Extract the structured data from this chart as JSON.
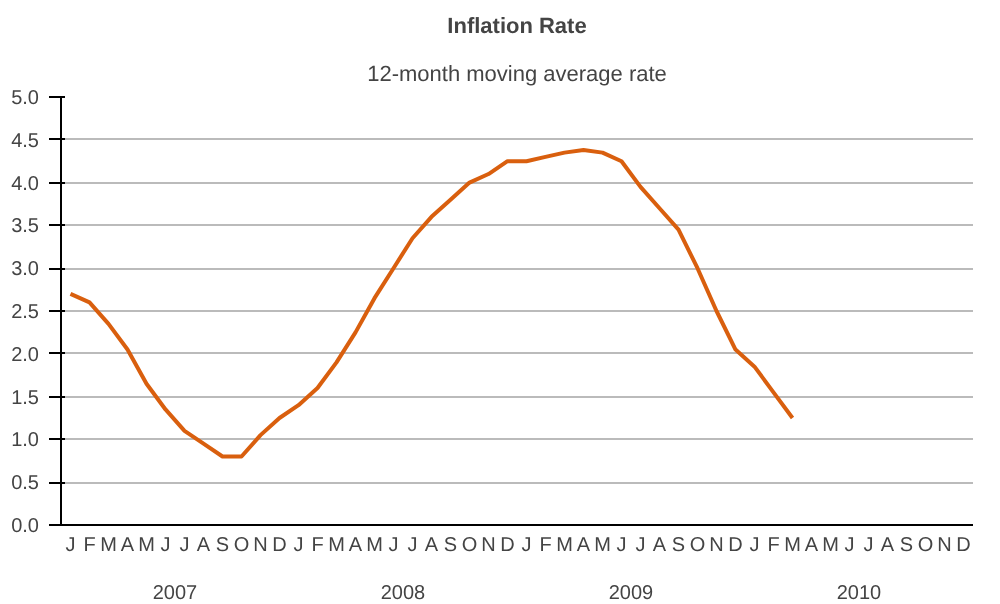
{
  "chart_data": {
    "type": "line",
    "title": "Inflation Rate",
    "subtitle": "12-month moving average rate",
    "categories": [
      "J",
      "F",
      "M",
      "A",
      "M",
      "J",
      "J",
      "A",
      "S",
      "O",
      "N",
      "D",
      "J",
      "F",
      "M",
      "A",
      "M",
      "J",
      "J",
      "A",
      "S",
      "O",
      "N",
      "D",
      "J",
      "F",
      "M",
      "A",
      "M",
      "J",
      "J",
      "A",
      "S",
      "O",
      "N",
      "D",
      "J",
      "F",
      "M",
      "A",
      "M",
      "J",
      "J",
      "A",
      "S",
      "O",
      "N",
      "D"
    ],
    "annotations": [
      "2007",
      "2008",
      "2009",
      "2010"
    ],
    "series": [
      {
        "color": "#d95f0e",
        "values": [
          2.7,
          2.6,
          2.35,
          2.05,
          1.65,
          1.35,
          1.1,
          0.95,
          0.8,
          0.8,
          1.05,
          1.25,
          1.4,
          1.6,
          1.9,
          2.25,
          2.65,
          3.0,
          3.35,
          3.6,
          3.8,
          4.0,
          4.1,
          4.25,
          4.25,
          4.3,
          4.35,
          4.38,
          4.35,
          4.25,
          3.95,
          3.7,
          3.45,
          3.0,
          2.5,
          2.05,
          1.85,
          1.55,
          1.25,
          null,
          null,
          null,
          null,
          null,
          null,
          null,
          null,
          null
        ]
      }
    ],
    "ylim": [
      0,
      5
    ],
    "yticks": [
      {
        "value": 0,
        "label": "0.0"
      },
      {
        "value": 0.5,
        "label": "0.5"
      },
      {
        "value": 1,
        "label": "1.0"
      },
      {
        "value": 1.5,
        "label": "1.5"
      },
      {
        "value": 2,
        "label": "2.0"
      },
      {
        "value": 2.5,
        "label": "2.5"
      },
      {
        "value": 3,
        "label": "3.0"
      },
      {
        "value": 3.5,
        "label": "3.5"
      },
      {
        "value": 4,
        "label": "4.0"
      },
      {
        "value": 4.5,
        "label": "4.5"
      },
      {
        "value": 5,
        "label": "5.0"
      }
    ],
    "grid": "y",
    "marker": "none",
    "line_style": "solid"
  }
}
